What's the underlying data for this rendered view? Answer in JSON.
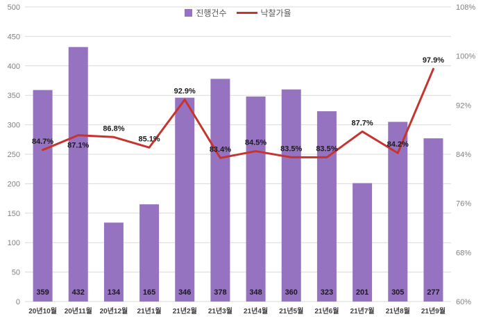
{
  "chart_data": {
    "type": "combo",
    "title": "",
    "categories": [
      "20년10월",
      "20년11월",
      "20년12월",
      "21년1월",
      "21년2월",
      "21년3월",
      "21년4월",
      "21년5월",
      "21년6월",
      "21년7월",
      "21년8월",
      "21년9월"
    ],
    "series": [
      {
        "name": "진행건수",
        "type": "bar",
        "axis": "left",
        "color": "#9673c1",
        "values": [
          359,
          432,
          134,
          165,
          346,
          378,
          348,
          360,
          323,
          201,
          305,
          277
        ]
      },
      {
        "name": "낙찰가율",
        "type": "line",
        "axis": "right",
        "color": "#c5342f",
        "values": [
          84.7,
          87.1,
          86.8,
          85.1,
          92.9,
          83.4,
          84.5,
          83.5,
          83.5,
          87.7,
          84.2,
          97.9
        ],
        "label_suffix": "%",
        "label_positions": [
          "above",
          "below",
          "above",
          "above",
          "above",
          "above",
          "above",
          "above",
          "above",
          "above",
          "above",
          "above"
        ]
      }
    ],
    "left_axis": {
      "min": 0,
      "max": 500,
      "step": 50,
      "tick_labels": [
        "0",
        "50",
        "100",
        "150",
        "200",
        "250",
        "300",
        "350",
        "400",
        "450",
        "500"
      ]
    },
    "right_axis": {
      "min": 60,
      "max": 108,
      "step": 8,
      "suffix": "%",
      "tick_labels": [
        "60%",
        "68%",
        "76%",
        "84%",
        "92%",
        "100%",
        "108%"
      ]
    },
    "legend_position": "top",
    "grid": true
  },
  "style": {
    "grid_color": "#d9d9d9",
    "axis_label_color": "#808080",
    "category_label_color": "#404040",
    "data_label_color": "#1a1a1a",
    "background": "#ffffff"
  }
}
